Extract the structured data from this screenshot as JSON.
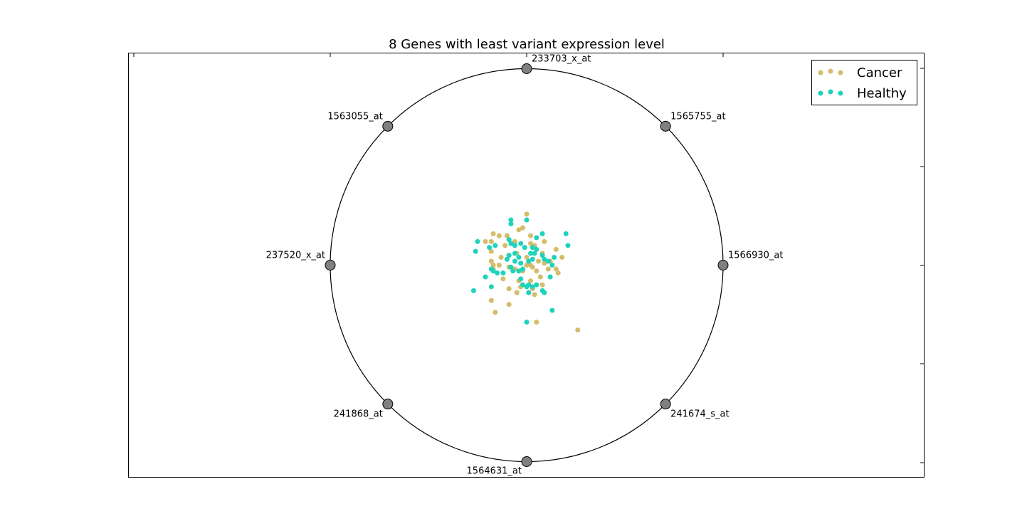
{
  "chart_data": {
    "type": "scatter",
    "title": "8 Genes with least variant expression level",
    "xlabel": "",
    "ylabel": "",
    "xlim": [
      -1.1,
      1.1
    ],
    "ylim": [
      -1.08,
      1.08
    ],
    "grid": false,
    "legend_position": "top-right",
    "anchors": [
      {
        "label": "1566930_at",
        "x": 1.0,
        "y": 0.0
      },
      {
        "label": "1565755_at",
        "x": 0.7071,
        "y": 0.7071
      },
      {
        "label": "233703_x_at",
        "x": 0.0,
        "y": 1.0
      },
      {
        "label": "1563055_at",
        "x": -0.7071,
        "y": 0.7071
      },
      {
        "label": "237520_x_at",
        "x": -1.0,
        "y": 0.0
      },
      {
        "label": "241868_at",
        "x": -0.7071,
        "y": -0.7071
      },
      {
        "label": "1564631_at",
        "x": 0.0,
        "y": -1.0
      },
      {
        "label": "241674_s_at",
        "x": 0.7071,
        "y": -0.7071
      }
    ],
    "series": [
      {
        "name": "Cancer",
        "color": "#d4bc6a",
        "points": [
          [
            0.0,
            0.26
          ],
          [
            -0.04,
            0.18
          ],
          [
            -0.02,
            0.19
          ],
          [
            0.02,
            0.15
          ],
          [
            -0.1,
            0.15
          ],
          [
            -0.17,
            0.16
          ],
          [
            -0.18,
            0.12
          ],
          [
            -0.21,
            0.12
          ],
          [
            -0.14,
            0.15
          ],
          [
            -0.18,
            0.07
          ],
          [
            -0.11,
            0.1
          ],
          [
            -0.06,
            0.12
          ],
          [
            0.02,
            0.11
          ],
          [
            0.04,
            0.1
          ],
          [
            0.09,
            0.12
          ],
          [
            0.15,
            0.08
          ],
          [
            0.18,
            0.04
          ],
          [
            0.12,
            0.02
          ],
          [
            -0.05,
            0.06
          ],
          [
            -0.13,
            0.04
          ],
          [
            -0.09,
            0.05
          ],
          [
            0.0,
            0.04
          ],
          [
            0.06,
            0.02
          ],
          [
            -0.17,
            0.0
          ],
          [
            -0.14,
            0.0
          ],
          [
            -0.09,
            -0.01
          ],
          [
            0.05,
            -0.03
          ],
          [
            0.11,
            -0.02
          ],
          [
            0.16,
            -0.04
          ],
          [
            0.03,
            -0.01
          ],
          [
            -0.02,
            -0.03
          ],
          [
            0.0,
            0.0
          ],
          [
            -0.12,
            -0.07
          ],
          [
            -0.03,
            -0.11
          ],
          [
            0.08,
            -0.1
          ],
          [
            0.03,
            -0.12
          ],
          [
            -0.09,
            -0.12
          ],
          [
            -0.05,
            -0.14
          ],
          [
            0.04,
            -0.15
          ],
          [
            -0.18,
            -0.18
          ],
          [
            -0.09,
            -0.2
          ],
          [
            -0.16,
            -0.24
          ],
          [
            0.05,
            -0.29
          ],
          [
            0.26,
            -0.33
          ],
          [
            0.02,
            0.0
          ],
          [
            -0.17,
            -0.02
          ],
          [
            0.09,
            0.01
          ],
          [
            0.07,
            -0.06
          ],
          [
            0.15,
            -0.02
          ],
          [
            -0.04,
            -0.08
          ],
          [
            0.08,
            0.06
          ],
          [
            -0.06,
            -0.02
          ],
          [
            -0.18,
            0.02
          ],
          [
            0.02,
            -0.08
          ]
        ]
      },
      {
        "name": "Healthy",
        "color": "#1dd3bc",
        "points": [
          [
            -0.08,
            0.23
          ],
          [
            -0.08,
            0.21
          ],
          [
            0.0,
            0.23
          ],
          [
            0.08,
            0.16
          ],
          [
            0.05,
            0.14
          ],
          [
            0.2,
            0.16
          ],
          [
            0.21,
            0.1
          ],
          [
            -0.25,
            0.12
          ],
          [
            -0.26,
            0.07
          ],
          [
            -0.19,
            0.09
          ],
          [
            -0.16,
            0.1
          ],
          [
            -0.09,
            0.13
          ],
          [
            -0.08,
            0.11
          ],
          [
            -0.06,
            0.1
          ],
          [
            -0.03,
            0.11
          ],
          [
            -0.01,
            0.09
          ],
          [
            0.03,
            0.09
          ],
          [
            0.05,
            0.08
          ],
          [
            0.02,
            0.06
          ],
          [
            0.04,
            0.06
          ],
          [
            0.08,
            0.05
          ],
          [
            0.14,
            0.04
          ],
          [
            0.09,
            0.03
          ],
          [
            -0.09,
            0.05
          ],
          [
            -0.06,
            0.06
          ],
          [
            -0.04,
            0.04
          ],
          [
            0.03,
            0.03
          ],
          [
            0.11,
            0.02
          ],
          [
            0.13,
            0.0
          ],
          [
            -0.06,
            0.02
          ],
          [
            -0.03,
            0.01
          ],
          [
            -0.02,
            -0.02
          ],
          [
            -0.04,
            -0.03
          ],
          [
            -0.07,
            -0.03
          ],
          [
            -0.12,
            -0.04
          ],
          [
            -0.15,
            -0.04
          ],
          [
            -0.18,
            -0.02
          ],
          [
            -0.17,
            -0.03
          ],
          [
            -0.21,
            -0.06
          ],
          [
            -0.18,
            -0.11
          ],
          [
            -0.27,
            -0.13
          ],
          [
            -0.03,
            -0.07
          ],
          [
            -0.02,
            -0.1
          ],
          [
            0.0,
            -0.11
          ],
          [
            0.01,
            -0.1
          ],
          [
            0.03,
            -0.11
          ],
          [
            0.05,
            -0.1
          ],
          [
            0.01,
            -0.14
          ],
          [
            0.08,
            -0.13
          ],
          [
            0.09,
            -0.14
          ],
          [
            0.12,
            -0.06
          ],
          [
            0.13,
            -0.23
          ],
          [
            0.0,
            -0.29
          ],
          [
            -0.08,
            -0.01
          ],
          [
            0.01,
            0.02
          ],
          [
            -0.1,
            0.03
          ]
        ]
      }
    ]
  }
}
